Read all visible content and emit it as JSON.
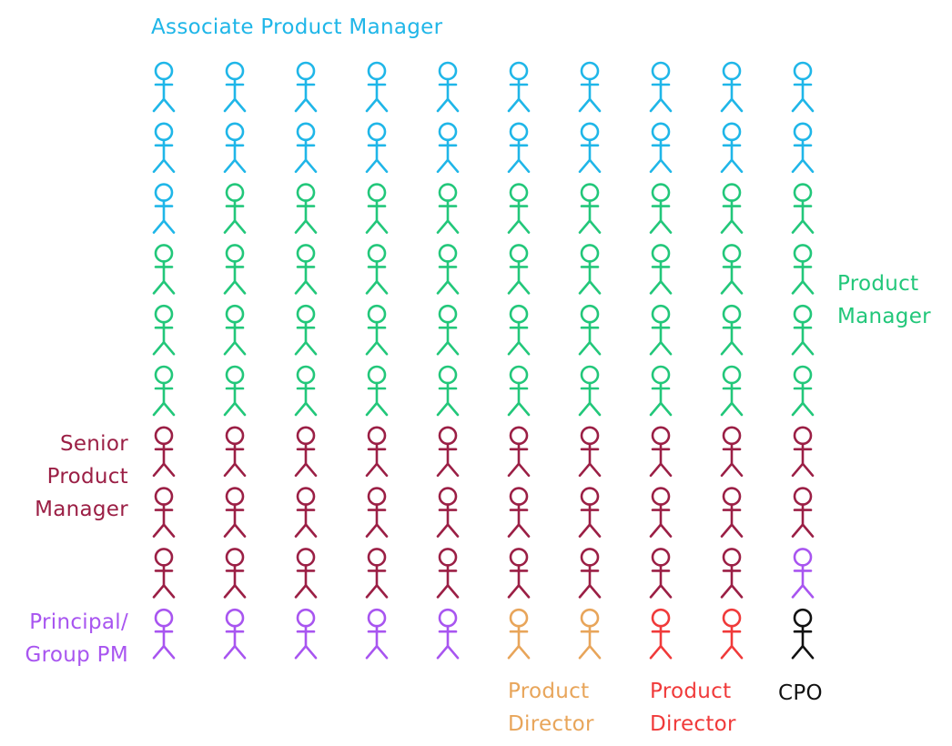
{
  "roles": {
    "apm": {
      "color": "#1fb6e8",
      "lines": [
        "Associate Product Manager"
      ]
    },
    "pm": {
      "color": "#22c77a",
      "lines": [
        "Product",
        "Manager"
      ]
    },
    "spm": {
      "color": "#9b1f45",
      "lines": [
        "Senior",
        "Product",
        "Manager"
      ]
    },
    "gpm": {
      "color": "#a855f0",
      "lines": [
        "Principal/",
        "Group PM"
      ]
    },
    "pd1": {
      "color": "#e8a55a",
      "lines": [
        "Product",
        "Director"
      ]
    },
    "pd2": {
      "color": "#f03a3a",
      "lines": [
        "Product",
        "Director"
      ]
    },
    "cpo": {
      "color": "#111111",
      "lines": [
        "CPO"
      ]
    }
  },
  "grid": {
    "rows": [
      [
        "apm",
        "apm",
        "apm",
        "apm",
        "apm",
        "apm",
        "apm",
        "apm",
        "apm",
        "apm"
      ],
      [
        "apm",
        "apm",
        "apm",
        "apm",
        "apm",
        "apm",
        "apm",
        "apm",
        "apm",
        "apm"
      ],
      [
        "apm",
        "pm",
        "pm",
        "pm",
        "pm",
        "pm",
        "pm",
        "pm",
        "pm",
        "pm"
      ],
      [
        "pm",
        "pm",
        "pm",
        "pm",
        "pm",
        "pm",
        "pm",
        "pm",
        "pm",
        "pm"
      ],
      [
        "pm",
        "pm",
        "pm",
        "pm",
        "pm",
        "pm",
        "pm",
        "pm",
        "pm",
        "pm"
      ],
      [
        "pm",
        "pm",
        "pm",
        "pm",
        "pm",
        "pm",
        "pm",
        "pm",
        "pm",
        "pm"
      ],
      [
        "spm",
        "spm",
        "spm",
        "spm",
        "spm",
        "spm",
        "spm",
        "spm",
        "spm",
        "spm"
      ],
      [
        "spm",
        "spm",
        "spm",
        "spm",
        "spm",
        "spm",
        "spm",
        "spm",
        "spm",
        "spm"
      ],
      [
        "spm",
        "spm",
        "spm",
        "spm",
        "spm",
        "spm",
        "spm",
        "spm",
        "spm",
        "gpm"
      ],
      [
        "gpm",
        "gpm",
        "gpm",
        "gpm",
        "gpm",
        "pd1",
        "pd1",
        "pd2",
        "pd2",
        "cpo"
      ]
    ]
  }
}
